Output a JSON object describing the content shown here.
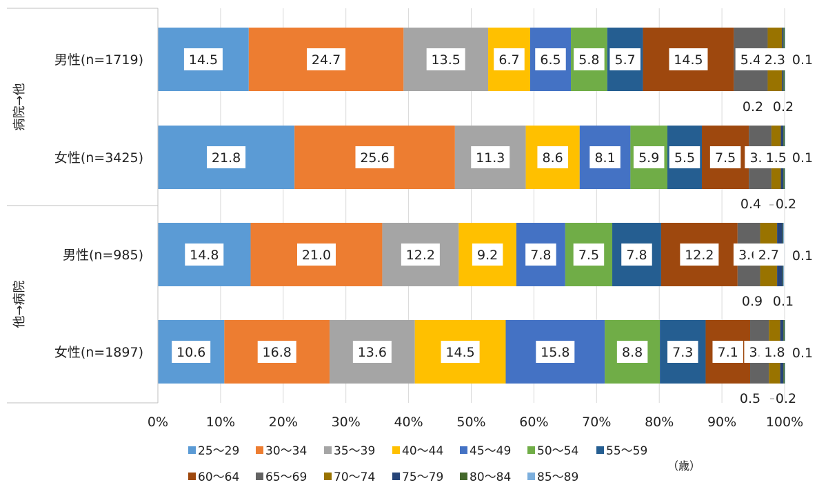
{
  "chart_data": {
    "type": "bar",
    "orientation": "horizontal",
    "stacked": "percent",
    "unit_label": "（歳）",
    "x_ticks": [
      "0%",
      "10%",
      "20%",
      "30%",
      "40%",
      "50%",
      "60%",
      "70%",
      "80%",
      "90%",
      "100%"
    ],
    "xlim": [
      0,
      100
    ],
    "grid": true,
    "legend_position": "bottom",
    "series": [
      {
        "name": "25～29",
        "color": "#5b9bd5"
      },
      {
        "name": "30～34",
        "color": "#ed7d31"
      },
      {
        "name": "35～39",
        "color": "#a5a5a5"
      },
      {
        "name": "40～44",
        "color": "#ffc000"
      },
      {
        "name": "45～49",
        "color": "#4472c4"
      },
      {
        "name": "50～54",
        "color": "#70ad47"
      },
      {
        "name": "55～59",
        "color": "#255e91"
      },
      {
        "name": "60～64",
        "color": "#9e480e"
      },
      {
        "name": "65～69",
        "color": "#636363"
      },
      {
        "name": "70～74",
        "color": "#997300"
      },
      {
        "name": "75～79",
        "color": "#264478"
      },
      {
        "name": "80～84",
        "color": "#43682b"
      },
      {
        "name": "85～89",
        "color": "#7cafdd"
      }
    ],
    "groups": [
      {
        "name": "病院→他",
        "categories": [
          "男性(n=1719)",
          "女性(n=3425)"
        ]
      },
      {
        "name": "他→病院",
        "categories": [
          "男性(n=985)",
          "女性(n=1897)"
        ]
      }
    ],
    "categories": [
      "男性(n=1719)",
      "女性(n=3425)",
      "男性(n=985)",
      "女性(n=1897)"
    ],
    "values": [
      [
        14.5,
        24.7,
        13.5,
        6.7,
        6.5,
        5.8,
        5.7,
        14.5,
        5.4,
        2.3,
        0.2,
        0.2,
        0.1
      ],
      [
        21.8,
        25.6,
        11.3,
        8.6,
        8.1,
        5.9,
        5.5,
        7.5,
        3.6,
        1.5,
        0.4,
        0.2,
        0.1
      ],
      [
        14.8,
        21.0,
        12.2,
        9.2,
        7.8,
        7.5,
        7.8,
        12.2,
        3.6,
        2.7,
        0.9,
        0.1,
        0.1
      ],
      [
        10.6,
        16.8,
        13.6,
        14.5,
        15.8,
        8.8,
        7.3,
        7.1,
        3.0,
        1.8,
        0.5,
        0.2,
        0.1
      ]
    ],
    "value_labels": [
      [
        "14.5",
        "24.7",
        "13.5",
        "6.7",
        "6.5",
        "5.8",
        "5.7",
        "14.5",
        "5.4",
        "2.3",
        "0.2",
        "0.2",
        "0.1"
      ],
      [
        "21.8",
        "25.6",
        "11.3",
        "8.6",
        "8.1",
        "5.9",
        "5.5",
        "7.5",
        "3.6",
        "1.5",
        "0.4",
        "0.2",
        "0.1"
      ],
      [
        "14.8",
        "21.0",
        "12.2",
        "9.2",
        "7.8",
        "7.5",
        "7.8",
        "12.2",
        "3.6",
        "2.7",
        "0.9",
        "0.1",
        "0.1"
      ],
      [
        "10.6",
        "16.8",
        "13.6",
        "14.5",
        "15.8",
        "8.8",
        "7.3",
        "7.1",
        "3.0",
        "1.8",
        "0.5",
        "0.2",
        "0.1"
      ]
    ]
  }
}
